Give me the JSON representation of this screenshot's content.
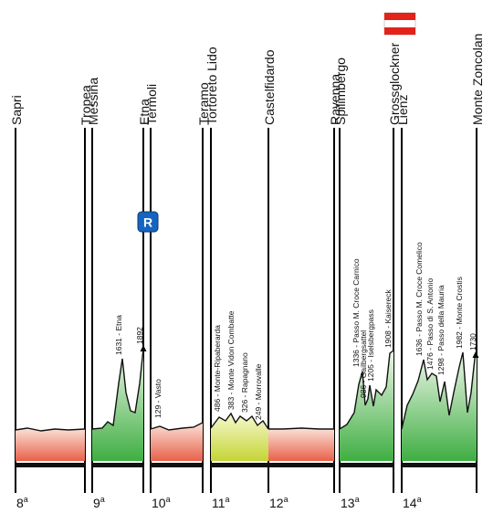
{
  "towns": [
    {
      "name": "Sapri"
    },
    {
      "name": "Tropea"
    },
    {
      "name": "Messina"
    },
    {
      "name": "Etna"
    },
    {
      "name": "Termoli"
    },
    {
      "name": "Teramo"
    },
    {
      "name": "Tortoreto Lido"
    },
    {
      "name": "Castelfidardo"
    },
    {
      "name": "Ravenna"
    },
    {
      "name": "Spilimbergo"
    },
    {
      "name": "Grossglockner"
    },
    {
      "name": "Lienz"
    },
    {
      "name": "Monte Zoncolan"
    }
  ],
  "stages": [
    {
      "label": "8",
      "suffix": "a",
      "terrain": "flat"
    },
    {
      "label": "9",
      "suffix": "a",
      "terrain": "mountain"
    },
    {
      "label": "10",
      "suffix": "a",
      "terrain": "flat"
    },
    {
      "label": "11",
      "suffix": "a",
      "terrain": "hilly"
    },
    {
      "label": "12",
      "suffix": "a",
      "terrain": "flat"
    },
    {
      "label": "13",
      "suffix": "a",
      "terrain": "mountain"
    },
    {
      "label": "14",
      "suffix": "a",
      "terrain": "mountain"
    }
  ],
  "climbs": [
    {
      "stage": 1,
      "text": "1631 - Etna"
    },
    {
      "stage": 1,
      "text": "1892",
      "summit": true
    },
    {
      "stage": 2,
      "text": "129 - Vasto"
    },
    {
      "stage": 3,
      "text": "486 - Monte-Ripaberarda"
    },
    {
      "stage": 3,
      "text": "383 - Monte Vidon Combatte"
    },
    {
      "stage": 3,
      "text": "326 - Rapagnano"
    },
    {
      "stage": 3,
      "text": "249 - Morrovalle"
    },
    {
      "stage": 5,
      "text": "1336 - Passo M. Croce Carnico"
    },
    {
      "stage": 5,
      "text": "986 - Gailbergsattel"
    },
    {
      "stage": 5,
      "text": "1205 - Iselsbergpass"
    },
    {
      "stage": 5,
      "text": "1908 - Kaisereck"
    },
    {
      "stage": 6,
      "text": "1636 - Passo M. Croce Comelico"
    },
    {
      "stage": 6,
      "text": "1476 - Passo di S. Antonio"
    },
    {
      "stage": 6,
      "text": "1298 - Passo della Mauria"
    },
    {
      "stage": 6,
      "text": "1982 - Monte Crostis"
    },
    {
      "stage": 6,
      "text": "1730",
      "summit": true
    }
  ],
  "rest_day_badge": "R",
  "flag_name": "austria-flag",
  "colors": {
    "flat": "#e8614a",
    "mountain": "#4db649",
    "hilly": "#c9d93a",
    "badge": "#1565c0",
    "flag_red": "#e2231a"
  }
}
